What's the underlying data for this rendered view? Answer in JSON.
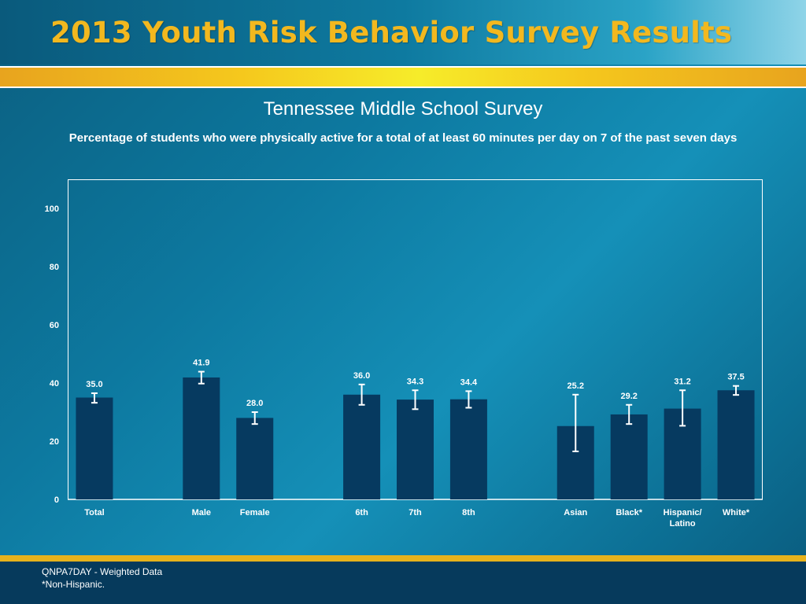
{
  "header": {
    "title": "2013 Youth Risk Behavior Survey Results"
  },
  "footer": {
    "note1": "QNPA7DAY - Weighted Data",
    "note2": "*Non-Hispanic."
  },
  "chart_data": {
    "type": "bar",
    "title": "Tennessee Middle School Survey",
    "subtitle": "Percentage of students who were physically active for a total of at least 60 minutes per day on 7 of the past seven days",
    "xlabel": "",
    "ylabel": "",
    "ylim": [
      0,
      110
    ],
    "yticks": [
      0,
      20,
      40,
      60,
      80,
      100
    ],
    "grid": false,
    "legend": "none",
    "bar_color": "#063a60",
    "error_bar_color": "#ffffff",
    "categories": [
      {
        "label": "Total",
        "value": 35.0,
        "value_label": "35.0",
        "ci": [
          33.2,
          36.5
        ]
      },
      {
        "label": "",
        "value": null,
        "value_label": "",
        "ci": null
      },
      {
        "label": "Male",
        "value": 41.9,
        "value_label": "41.9",
        "ci": [
          39.8,
          43.9
        ]
      },
      {
        "label": "Female",
        "value": 28.0,
        "value_label": "28.0",
        "ci": [
          25.9,
          30.0
        ]
      },
      {
        "label": "",
        "value": null,
        "value_label": "",
        "ci": null
      },
      {
        "label": "6th",
        "value": 36.0,
        "value_label": "36.0",
        "ci": [
          32.5,
          39.5
        ]
      },
      {
        "label": "7th",
        "value": 34.3,
        "value_label": "34.3",
        "ci": [
          31.0,
          37.5
        ]
      },
      {
        "label": "8th",
        "value": 34.4,
        "value_label": "34.4",
        "ci": [
          31.5,
          37.2
        ]
      },
      {
        "label": "",
        "value": null,
        "value_label": "",
        "ci": null
      },
      {
        "label": "Asian",
        "value": 25.2,
        "value_label": "25.2",
        "ci": [
          16.5,
          36.0
        ]
      },
      {
        "label": "Black*",
        "value": 29.2,
        "value_label": "29.2",
        "ci": [
          25.9,
          32.5
        ]
      },
      {
        "label": "Hispanic/\nLatino",
        "value": 31.2,
        "value_label": "31.2",
        "ci": [
          25.3,
          37.5
        ]
      },
      {
        "label": "White*",
        "value": 37.5,
        "value_label": "37.5",
        "ci": [
          35.9,
          39.0
        ]
      }
    ]
  }
}
